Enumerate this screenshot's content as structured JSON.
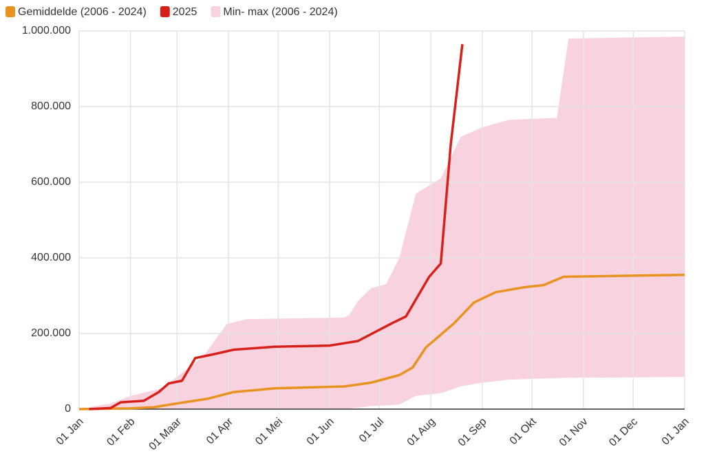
{
  "chart_data": {
    "type": "line",
    "legend": "top-left",
    "grid": true,
    "xlim": [
      0,
      365
    ],
    "xticks": [
      {
        "value": 0,
        "label": "01 Jan"
      },
      {
        "value": 31,
        "label": "01 Feb"
      },
      {
        "value": 59,
        "label": "01 Maar"
      },
      {
        "value": 90,
        "label": "01 Apr"
      },
      {
        "value": 120,
        "label": "01 Mei"
      },
      {
        "value": 151,
        "label": "01 Jun"
      },
      {
        "value": 181,
        "label": "01 Jul"
      },
      {
        "value": 212,
        "label": "01 Aug"
      },
      {
        "value": 243,
        "label": "01 Sep"
      },
      {
        "value": 273,
        "label": "01 Okt"
      },
      {
        "value": 304,
        "label": "01 Nov"
      },
      {
        "value": 334,
        "label": "01 Dec"
      },
      {
        "value": 365,
        "label": "01 Jan"
      }
    ],
    "ylim": [
      0,
      1000000
    ],
    "yticks": [
      0,
      {
        "value": 200000,
        "label": "200.000"
      },
      {
        "value": 400000,
        "label": "400.000"
      },
      {
        "value": 600000,
        "label": "600.000"
      },
      {
        "value": 800000,
        "label": "800.000"
      },
      {
        "value": 1000000,
        "label": "1.000.000"
      }
    ],
    "series": [
      {
        "name": "Gemiddelde (2006 - 2024)",
        "color": "#e8921f",
        "kind": "line",
        "x": [
          0,
          31,
          45,
          59,
          77,
          93,
          118,
          160,
          176,
          193,
          201,
          209,
          226,
          238,
          251,
          268,
          280,
          292,
          365
        ],
        "values": [
          0,
          2000,
          5000,
          15000,
          27000,
          45000,
          55000,
          60000,
          70000,
          90000,
          110000,
          163000,
          227000,
          282000,
          309000,
          322000,
          328000,
          350000,
          355000
        ]
      },
      {
        "name": "2025",
        "color": "#d8201a",
        "kind": "line",
        "x": [
          6,
          19,
          25,
          39,
          48,
          54,
          62,
          70,
          81,
          93,
          118,
          151,
          168,
          189,
          197,
          211,
          218,
          224,
          231
        ],
        "values": [
          0,
          3000,
          18000,
          22000,
          45000,
          68000,
          75000,
          135000,
          145000,
          157000,
          165000,
          168000,
          180000,
          228000,
          245000,
          350000,
          385000,
          700000,
          965000
        ]
      },
      {
        "name": "Min- max (2006 - 2024)",
        "color": "#f8d3df",
        "kind": "band",
        "x": [
          6,
          19,
          31,
          50,
          75,
          89,
          101,
          160,
          163,
          168,
          176,
          185,
          193,
          203,
          218,
          230,
          243,
          259,
          288,
          295,
          365
        ],
        "low": [
          0,
          0,
          0,
          0,
          0,
          0,
          0,
          0,
          2000,
          4000,
          8000,
          10000,
          12000,
          35000,
          42000,
          60000,
          70000,
          78000,
          82000,
          83000,
          85000
        ],
        "high": [
          5000,
          15000,
          35000,
          55000,
          140000,
          225000,
          238000,
          242000,
          250000,
          285000,
          320000,
          330000,
          400000,
          570000,
          610000,
          720000,
          745000,
          765000,
          770000,
          980000,
          985000
        ]
      }
    ]
  }
}
